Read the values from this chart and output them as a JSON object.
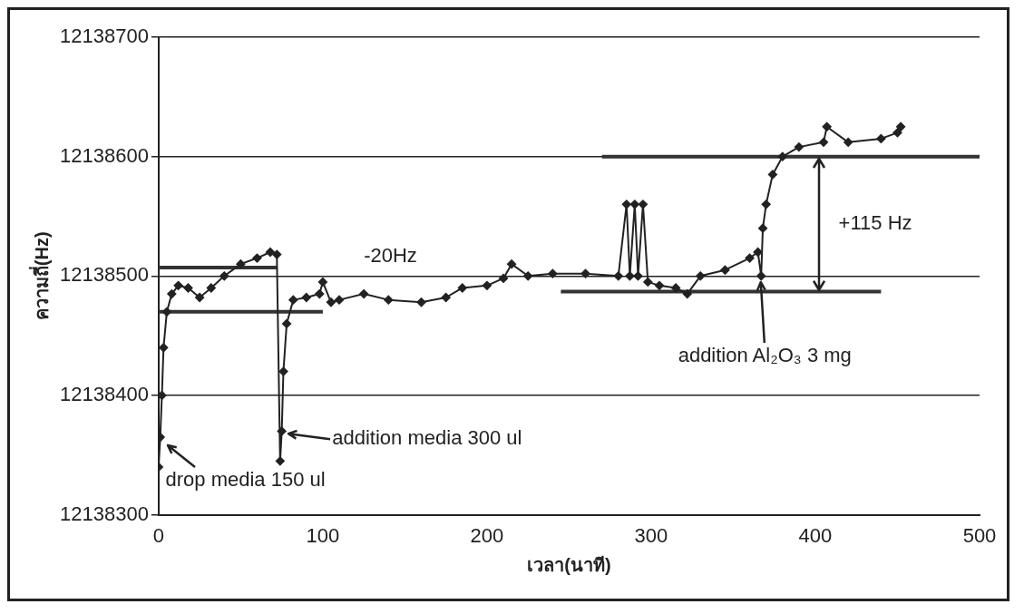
{
  "chart_data": {
    "type": "line",
    "xlabel": "เวลา(นาที)",
    "ylabel": "ความถี่(Hz)",
    "xlim": [
      0,
      500
    ],
    "xticks": [
      0,
      100,
      200,
      300,
      400,
      500
    ],
    "ylim": [
      12138300,
      12138700
    ],
    "yticks": [
      12138300,
      12138400,
      12138500,
      12138600,
      12138700
    ],
    "grid": "y",
    "marker": "diamond",
    "legend": false,
    "series": [
      {
        "color": "#222222",
        "x": [
          0,
          1,
          2,
          3,
          5,
          8,
          12,
          18,
          25,
          32,
          40,
          50,
          60,
          68,
          72,
          74,
          75,
          76,
          78,
          82,
          90,
          98,
          100,
          105,
          110,
          125,
          140,
          160,
          175,
          185,
          200,
          210,
          215,
          225,
          240,
          260,
          280,
          285,
          287,
          290,
          292,
          295,
          298,
          305,
          315,
          322,
          330,
          345,
          360,
          365,
          367,
          368,
          370,
          374,
          380,
          390,
          405,
          407,
          420,
          440,
          450,
          452
        ],
        "values": [
          12138340,
          12138365,
          12138400,
          12138440,
          12138470,
          12138485,
          12138492,
          12138490,
          12138482,
          12138490,
          12138500,
          12138510,
          12138515,
          12138520,
          12138518,
          12138345,
          12138370,
          12138420,
          12138460,
          12138480,
          12138482,
          12138485,
          12138495,
          12138478,
          12138480,
          12138485,
          12138480,
          12138478,
          12138482,
          12138490,
          12138492,
          12138498,
          12138510,
          12138500,
          12138502,
          12138502,
          12138500,
          12138560,
          12138500,
          12138560,
          12138500,
          12138560,
          12138495,
          12138492,
          12138490,
          12138485,
          12138500,
          12138505,
          12138515,
          12138520,
          12138500,
          12138540,
          12138560,
          12138585,
          12138600,
          12138608,
          12138612,
          12138625,
          12138612,
          12138615,
          12138620,
          12138625
        ]
      },
      {
        "type": "line",
        "marker": "none",
        "color": "#333333",
        "x": [
          0,
          72
        ],
        "values": [
          12138507,
          12138507
        ]
      },
      {
        "type": "line",
        "marker": "none",
        "color": "#333333",
        "x": [
          0,
          100
        ],
        "values": [
          12138470,
          12138470
        ]
      },
      {
        "type": "line",
        "marker": "none",
        "color": "#333333",
        "x": [
          245,
          440
        ],
        "values": [
          12138487,
          12138487
        ]
      },
      {
        "type": "line",
        "marker": "none",
        "color": "#333333",
        "x": [
          270,
          500
        ],
        "values": [
          12138600,
          12138600
        ]
      }
    ],
    "annotations": [
      "-20Hz",
      {
        "text": "+115 Hz",
        "x": 402,
        "y": 12138600
      },
      {
        "text": "addition Al₂O₃ 3 mg",
        "x": 367,
        "y": 12138497
      },
      {
        "text": "addition media 300 ul",
        "x": 77,
        "y": 12138368
      },
      {
        "text": "drop media 150 ul",
        "x": 2,
        "y": 12138363
      }
    ]
  }
}
